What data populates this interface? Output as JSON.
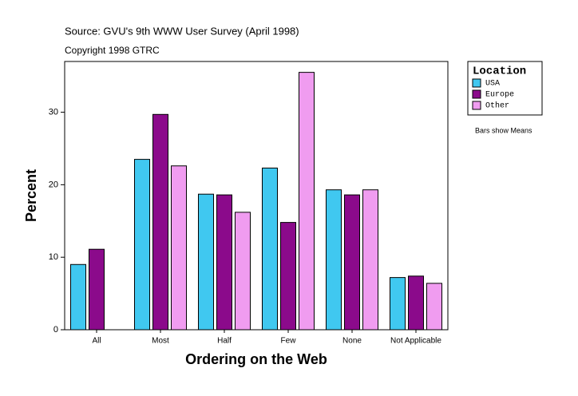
{
  "chart_data": {
    "type": "bar",
    "title": "Source: GVU's 9th WWW User Survey (April 1998)",
    "subtitle": "Copyright 1998 GTRC",
    "x_label": "Ordering on the Web",
    "y_label": "Percent",
    "note": "Bars show Means",
    "legend_title": "Location",
    "legend_position": "right",
    "categories": [
      "All",
      "Most",
      "Half",
      "Few",
      "None",
      "Not Applicable"
    ],
    "series": [
      {
        "name": "USA",
        "color": "#40c8f0",
        "values": [
          9.0,
          23.5,
          18.7,
          22.3,
          19.3,
          7.2
        ]
      },
      {
        "name": "Europe",
        "color": "#8b0a8b",
        "values": [
          11.1,
          29.7,
          18.6,
          14.8,
          18.6,
          7.4
        ]
      },
      {
        "name": "Other",
        "color": "#f09cf0",
        "values": [
          null,
          22.6,
          16.2,
          35.5,
          19.3,
          6.4
        ]
      }
    ],
    "ylim": [
      0,
      37
    ],
    "yticks": [
      0,
      10,
      20,
      30
    ],
    "grid": false
  }
}
